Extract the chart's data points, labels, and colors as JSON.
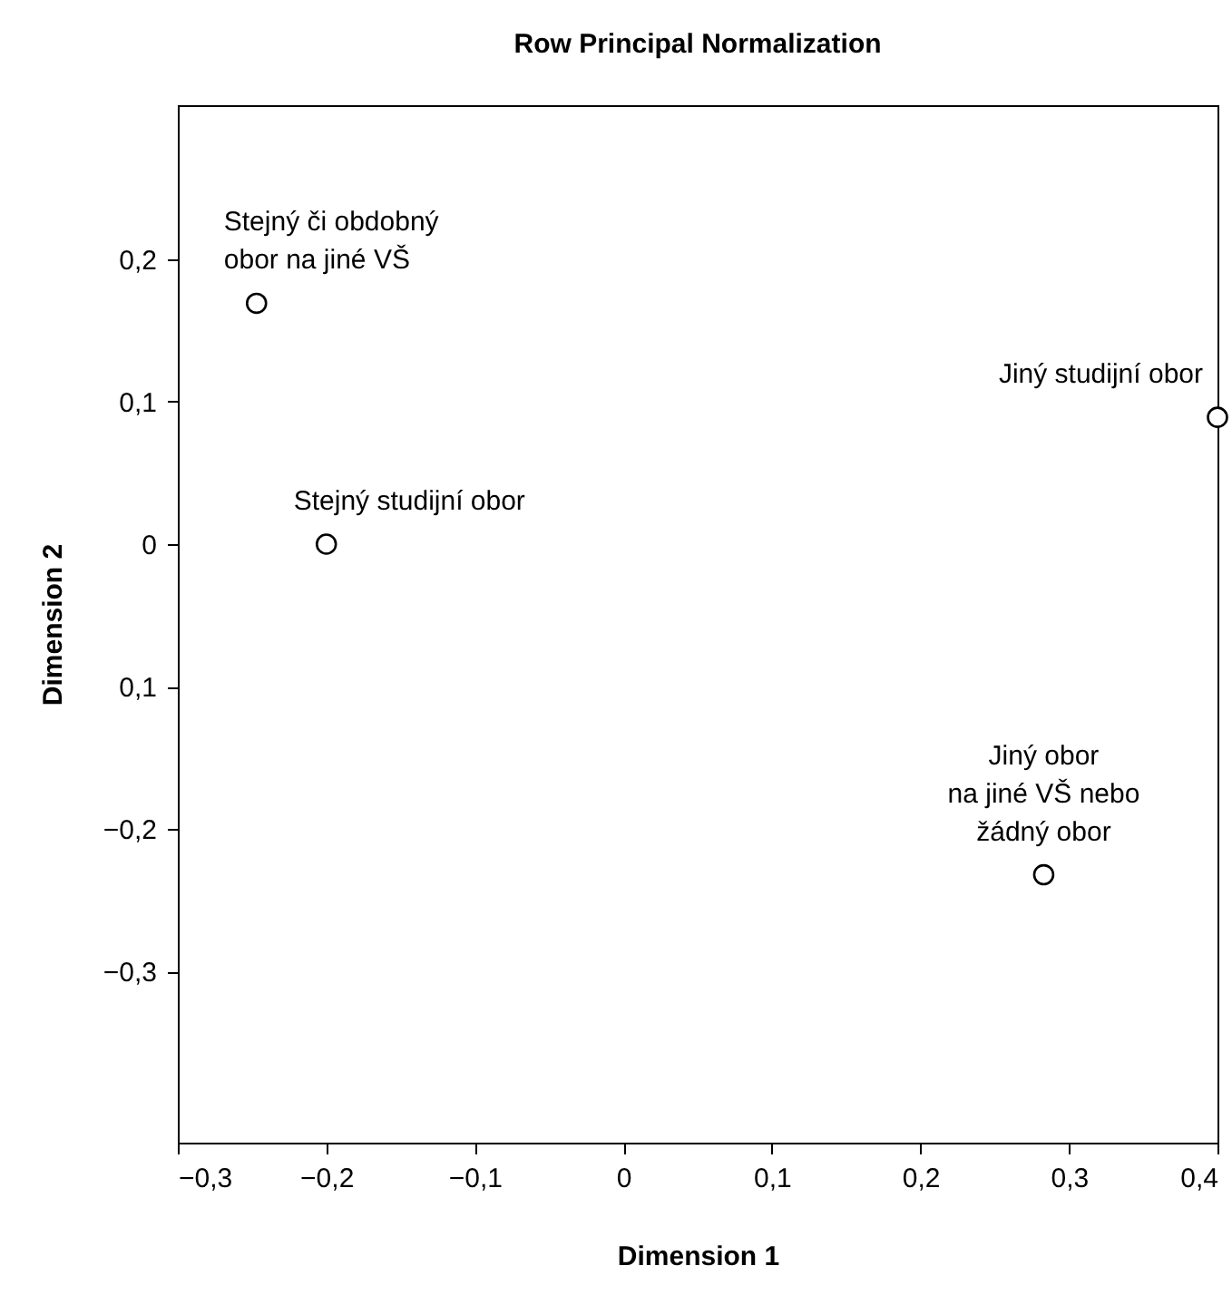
{
  "chart_data": {
    "type": "scatter",
    "title": "Row Principal Normalization",
    "xlabel": "Dimension 1",
    "ylabel": "Dimension 2",
    "x": [
      -0.247,
      -0.2,
      0.4,
      0.283
    ],
    "series": [
      {
        "color": "#000000",
        "values": [
          0.169,
          0.0,
          0.089,
          -0.232
        ]
      }
    ],
    "marker": "circle",
    "xlim": [
      -0.3,
      0.4
    ],
    "ylim": [
      -0.42,
      0.308
    ],
    "xticks": [
      {
        "value": -0.3,
        "label": "−0,3"
      },
      {
        "value": -0.2,
        "label": "−0,2"
      },
      {
        "value": -0.1,
        "label": "−0,1"
      },
      0,
      {
        "value": 0.1,
        "label": "0,1"
      },
      {
        "value": 0.2,
        "label": "0,2"
      },
      {
        "value": 0.3,
        "label": "0,3"
      },
      {
        "value": 0.4,
        "label": "0,4"
      }
    ],
    "yticks": [
      {
        "value": 0.2,
        "label": "0,2"
      },
      {
        "value": 0.1,
        "label": "0,1"
      },
      0,
      {
        "value": -0.1,
        "label": "0,1"
      },
      {
        "value": -0.2,
        "label": "−0,2"
      },
      {
        "value": -0.3,
        "label": "−0,3"
      }
    ],
    "annotations": [
      {
        "text": "Stejný či obdobný\nobor na jiné VŠ",
        "x": -0.247,
        "y": 0.169
      },
      {
        "text": "Stejný studijní obor",
        "x": -0.2,
        "y": 0.0
      },
      {
        "text": "Jiný studijní obor",
        "x": 0.4,
        "y": 0.089
      },
      {
        "text": "Jiný obor\nna jiné VŠ nebo\nžádný obor",
        "x": 0.283,
        "y": -0.232
      }
    ],
    "grid": false
  }
}
